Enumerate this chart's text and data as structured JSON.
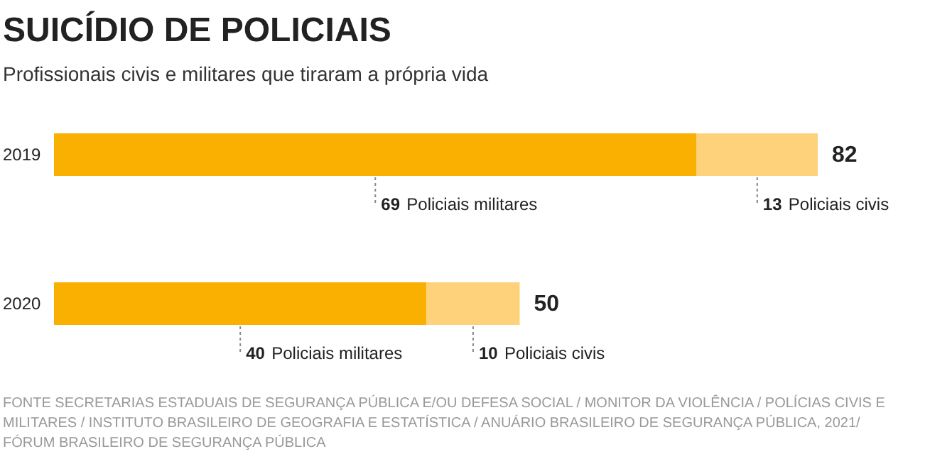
{
  "chart_data": {
    "type": "bar",
    "orientation": "horizontal",
    "stacked": true,
    "title": "SUICÍDIO DE POLICIAIS",
    "subtitle": "Profissionais civis e militares que tiraram a própria vida",
    "categories": [
      "2019",
      "2020"
    ],
    "series": [
      {
        "name": "Policiais militares",
        "color": "#f9b000",
        "values": [
          69,
          40
        ],
        "value_labels": [
          "69",
          "40"
        ]
      },
      {
        "name": "Policiais civis",
        "color": "#fdd27a",
        "values": [
          13,
          10
        ],
        "value_labels": [
          "13",
          "10"
        ]
      }
    ],
    "totals": [
      "82",
      "50"
    ],
    "annotations": [
      "FONTE SECRETARIAS ESTADUAIS DE SEGURANÇA PÚBLICA E/OU DEFESA SOCIAL / MONITOR DA VIOLÊNCIA / POLÍCIAS CIVIS E MILITARES / INSTITUTO BRASILEIRO DE GEOGRAFIA E ESTATÍSTICA / ANUÁRIO BRASILEIRO DE SEGURANÇA PÚBLICA, 2021/ FÓRUM BRASILEIRO DE SEGURANÇA PÚBLICA"
    ]
  }
}
